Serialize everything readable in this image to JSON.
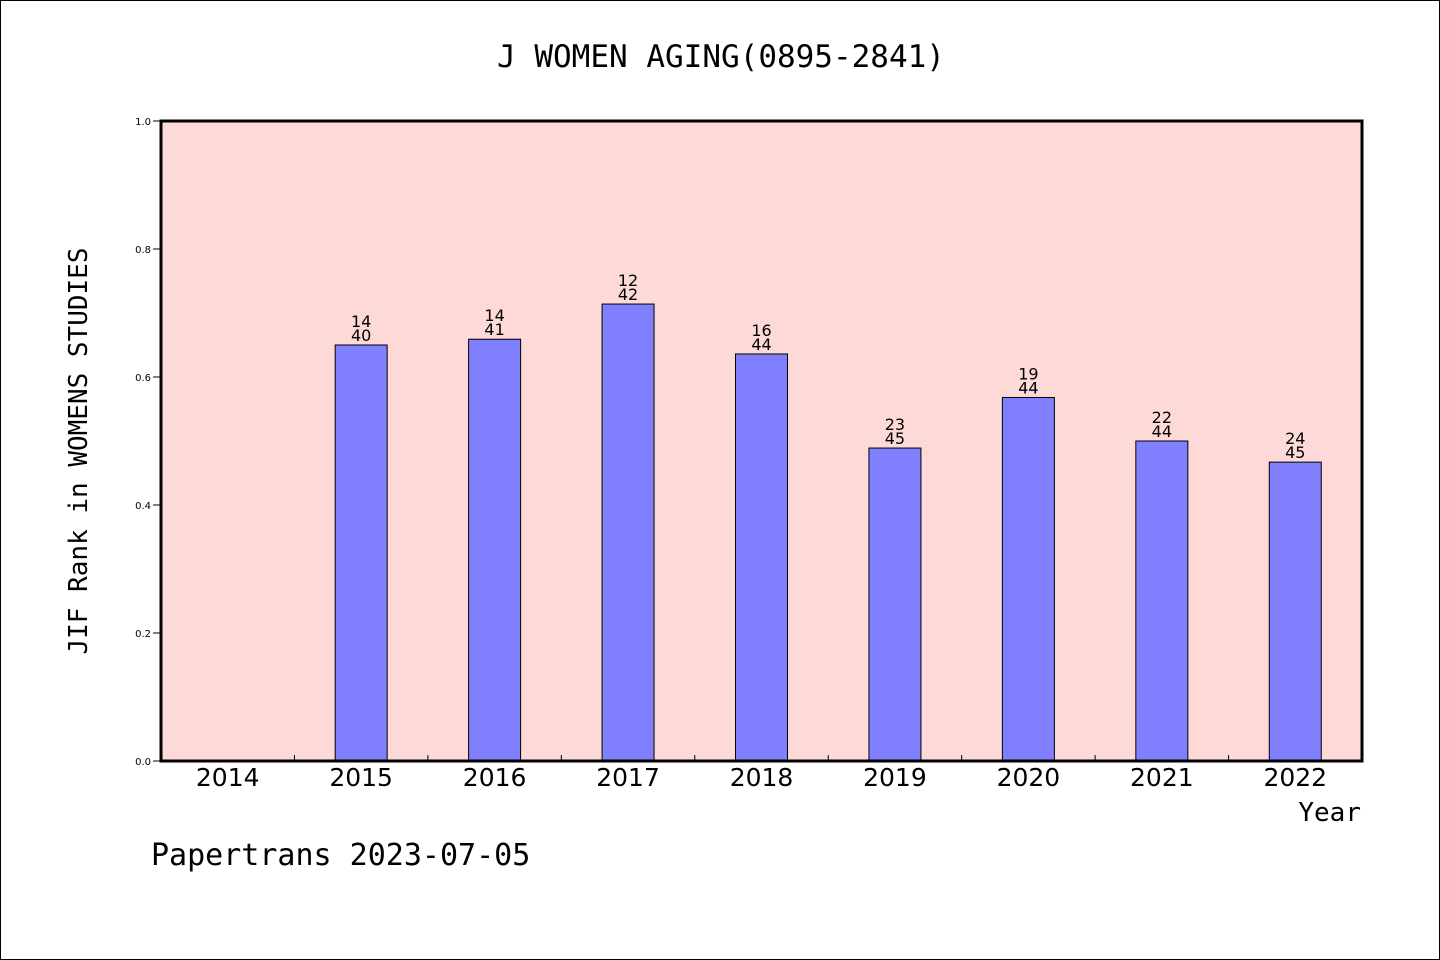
{
  "chart_data": {
    "type": "bar",
    "title": "J WOMEN AGING(0895-2841)",
    "xlabel": "Year",
    "ylabel": "JIF Rank in WOMENS STUDIES",
    "ylim": [
      0,
      1
    ],
    "yticks": [
      "0.0",
      "0.2",
      "0.4",
      "0.6",
      "0.8",
      "1.0"
    ],
    "categories": [
      "2014",
      "2015",
      "2016",
      "2017",
      "2018",
      "2019",
      "2020",
      "2021",
      "2022"
    ],
    "values": [
      null,
      0.65,
      0.659,
      0.714,
      0.636,
      0.489,
      0.568,
      0.5,
      0.467
    ],
    "rank": [
      "",
      "14",
      "14",
      "12",
      "16",
      "23",
      "19",
      "22",
      "24"
    ],
    "total": [
      "",
      "40",
      "41",
      "42",
      "44",
      "45",
      "44",
      "44",
      "45"
    ],
    "grid": false,
    "plot_background": "#fddad7",
    "bar_color": "#8080ff"
  },
  "footer": {
    "text": "Papertrans 2023-07-05"
  }
}
